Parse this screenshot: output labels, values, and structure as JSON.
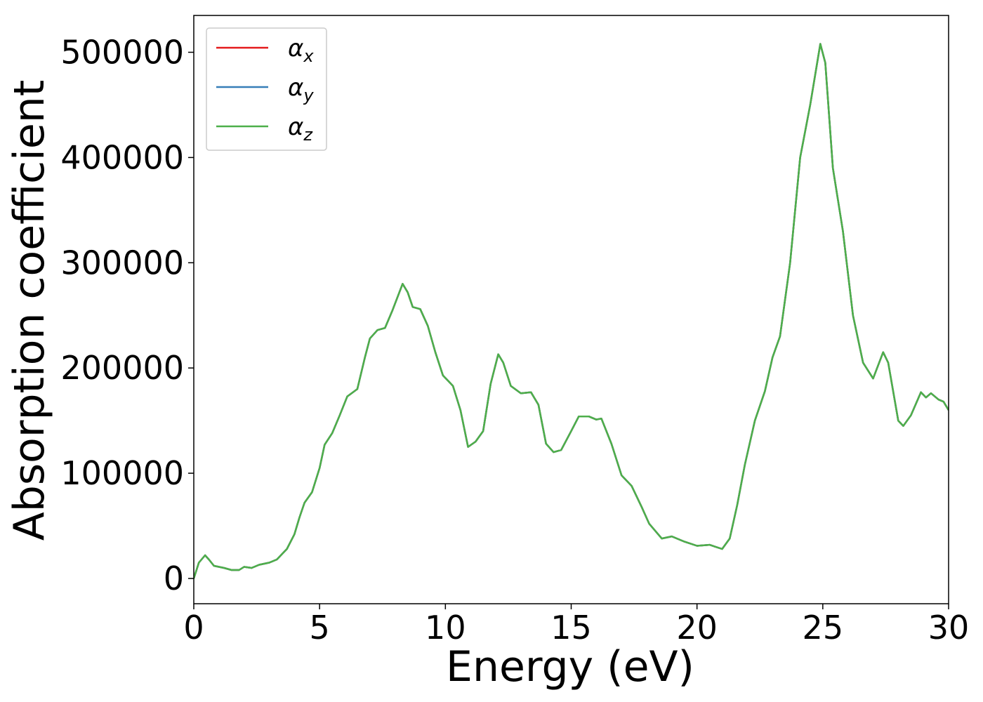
{
  "chart_data": {
    "type": "line",
    "xlabel": "Energy (eV)",
    "ylabel": "Absorption coefficient",
    "x": [
      0,
      0.2,
      0.45,
      0.6,
      0.8,
      1.2,
      1.5,
      1.8,
      2,
      2.3,
      2.6,
      3,
      3.3,
      3.7,
      4,
      4.2,
      4.4,
      4.7,
      5,
      5.2,
      5.5,
      5.8,
      6.1,
      6.5,
      6.8,
      7,
      7.3,
      7.6,
      7.9,
      8.3,
      8.5,
      8.7,
      9,
      9.3,
      9.6,
      9.9,
      10.3,
      10.6,
      10.9,
      11.2,
      11.5,
      11.8,
      12.1,
      12.3,
      12.6,
      13,
      13.4,
      13.7,
      14,
      14.3,
      14.6,
      15,
      15.3,
      15.7,
      16,
      16.2,
      16.6,
      17,
      17.4,
      17.8,
      18.1,
      18.6,
      19,
      19.5,
      20,
      20.5,
      21,
      21.3,
      21.6,
      21.9,
      22.3,
      22.7,
      23,
      23.3,
      23.7,
      24.1,
      24.5,
      24.9,
      25.1,
      25.4,
      25.8,
      26.2,
      26.6,
      27,
      27.4,
      27.6,
      28,
      28.2,
      28.5,
      28.9,
      29.1,
      29.3,
      29.6,
      29.8,
      30
    ],
    "series": [
      {
        "name": "αx",
        "color": "#e41a1c",
        "values": [
          0,
          15000,
          22000,
          18000,
          12000,
          10000,
          8000,
          8000,
          11000,
          10000,
          13000,
          15000,
          18000,
          28000,
          42000,
          58000,
          72000,
          82000,
          105000,
          127000,
          138000,
          155000,
          173000,
          180000,
          210000,
          228000,
          236000,
          238000,
          255000,
          280000,
          272000,
          258000,
          256000,
          240000,
          215000,
          193000,
          183000,
          160000,
          125000,
          130000,
          140000,
          185000,
          213000,
          205000,
          183000,
          176000,
          177000,
          165000,
          128000,
          120000,
          122000,
          140000,
          154000,
          154000,
          151000,
          152000,
          128000,
          98000,
          88000,
          68000,
          52000,
          38000,
          40000,
          35000,
          31000,
          32000,
          28000,
          38000,
          70000,
          108000,
          150000,
          178000,
          210000,
          230000,
          300000,
          400000,
          450000,
          508000,
          490000,
          390000,
          330000,
          250000,
          205000,
          190000,
          215000,
          205000,
          150000,
          145000,
          155000,
          177000,
          172000,
          176000,
          170000,
          168000,
          160000
        ]
      },
      {
        "name": "αy",
        "color": "#377eb8",
        "values": [
          0,
          15000,
          22000,
          18000,
          12000,
          10000,
          8000,
          8000,
          11000,
          10000,
          13000,
          15000,
          18000,
          28000,
          42000,
          58000,
          72000,
          82000,
          105000,
          127000,
          138000,
          155000,
          173000,
          180000,
          210000,
          228000,
          236000,
          238000,
          255000,
          280000,
          272000,
          258000,
          256000,
          240000,
          215000,
          193000,
          183000,
          160000,
          125000,
          130000,
          140000,
          185000,
          213000,
          205000,
          183000,
          176000,
          177000,
          165000,
          128000,
          120000,
          122000,
          140000,
          154000,
          154000,
          151000,
          152000,
          128000,
          98000,
          88000,
          68000,
          52000,
          38000,
          40000,
          35000,
          31000,
          32000,
          28000,
          38000,
          70000,
          108000,
          150000,
          178000,
          210000,
          230000,
          300000,
          400000,
          450000,
          508000,
          490000,
          390000,
          330000,
          250000,
          205000,
          190000,
          215000,
          205000,
          150000,
          145000,
          155000,
          177000,
          172000,
          176000,
          170000,
          168000,
          160000
        ]
      },
      {
        "name": "αz",
        "color": "#4daf4a",
        "values": [
          0,
          15000,
          22000,
          18000,
          12000,
          10000,
          8000,
          8000,
          11000,
          10000,
          13000,
          15000,
          18000,
          28000,
          42000,
          58000,
          72000,
          82000,
          105000,
          127000,
          138000,
          155000,
          173000,
          180000,
          210000,
          228000,
          236000,
          238000,
          255000,
          280000,
          272000,
          258000,
          256000,
          240000,
          215000,
          193000,
          183000,
          160000,
          125000,
          130000,
          140000,
          185000,
          213000,
          205000,
          183000,
          176000,
          177000,
          165000,
          128000,
          120000,
          122000,
          140000,
          154000,
          154000,
          151000,
          152000,
          128000,
          98000,
          88000,
          68000,
          52000,
          38000,
          40000,
          35000,
          31000,
          32000,
          28000,
          38000,
          70000,
          108000,
          150000,
          178000,
          210000,
          230000,
          300000,
          400000,
          450000,
          508000,
          490000,
          390000,
          330000,
          250000,
          205000,
          190000,
          215000,
          205000,
          150000,
          145000,
          155000,
          177000,
          172000,
          176000,
          170000,
          168000,
          160000
        ]
      }
    ],
    "xlim": [
      0,
      30
    ],
    "ylim": [
      -24000,
      535000
    ],
    "xticks": [
      0,
      5,
      10,
      15,
      20,
      25,
      30
    ],
    "yticks": [
      0,
      100000,
      200000,
      300000,
      400000,
      500000
    ],
    "legend": "upper left"
  }
}
